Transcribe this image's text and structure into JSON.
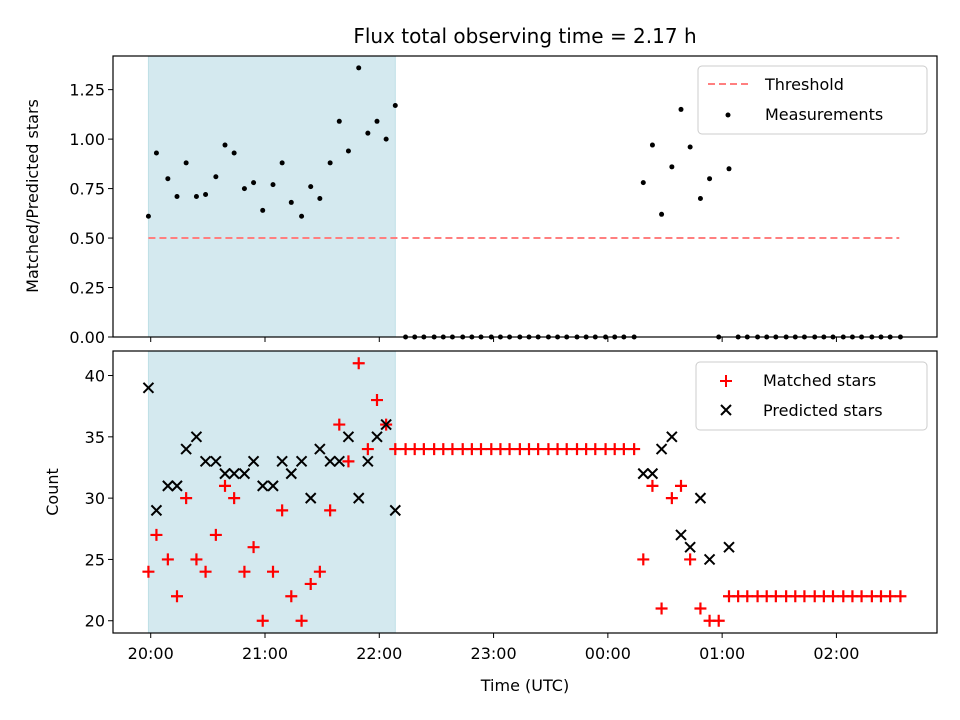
{
  "chart_data": [
    {
      "type": "scatter",
      "title": "Flux total observing time = 2.17 h",
      "ylabel": "Matched/Predicted stars",
      "xlabel": "",
      "x_unit": "hours after 20:00 UTC",
      "xlim": [
        -0.33,
        6.88
      ],
      "ylim": [
        0,
        1.42
      ],
      "yticks": [
        "0.00",
        "0.25",
        "0.50",
        "0.75",
        "1.00",
        "1.25"
      ],
      "ytick_values": [
        0,
        0.25,
        0.5,
        0.75,
        1.0,
        1.25
      ],
      "xtick_values": [
        0,
        1,
        2,
        3,
        4,
        5,
        6
      ],
      "shaded_span": [
        -0.02,
        2.14
      ],
      "shade_color": "#d4e9ef",
      "threshold": {
        "name": "Threshold",
        "value": 0.5,
        "x_range": [
          -0.02,
          6.55
        ],
        "color": "#ff7f7f"
      },
      "legend": [
        "Threshold",
        "Measurements"
      ],
      "legend_position": "top-right",
      "series": [
        {
          "name": "Measurements",
          "color": "#000000",
          "points": [
            [
              -0.02,
              0.61
            ],
            [
              0.05,
              0.93
            ],
            [
              0.15,
              0.8
            ],
            [
              0.23,
              0.71
            ],
            [
              0.31,
              0.88
            ],
            [
              0.4,
              0.71
            ],
            [
              0.48,
              0.72
            ],
            [
              0.57,
              0.81
            ],
            [
              0.65,
              0.97
            ],
            [
              0.73,
              0.93
            ],
            [
              0.82,
              0.75
            ],
            [
              0.9,
              0.78
            ],
            [
              0.98,
              0.64
            ],
            [
              1.07,
              0.77
            ],
            [
              1.15,
              0.88
            ],
            [
              1.23,
              0.68
            ],
            [
              1.32,
              0.61
            ],
            [
              1.4,
              0.76
            ],
            [
              1.48,
              0.7
            ],
            [
              1.57,
              0.88
            ],
            [
              1.65,
              1.09
            ],
            [
              1.73,
              0.94
            ],
            [
              1.82,
              1.36
            ],
            [
              1.9,
              1.03
            ],
            [
              1.98,
              1.09
            ],
            [
              2.06,
              1.0
            ],
            [
              2.14,
              1.17
            ],
            [
              2.23,
              0
            ],
            [
              2.31,
              0
            ],
            [
              2.39,
              0
            ],
            [
              2.48,
              0
            ],
            [
              2.56,
              0
            ],
            [
              2.64,
              0
            ],
            [
              2.73,
              0
            ],
            [
              2.81,
              0
            ],
            [
              2.89,
              0
            ],
            [
              2.98,
              0
            ],
            [
              3.06,
              0
            ],
            [
              3.14,
              0
            ],
            [
              3.23,
              0
            ],
            [
              3.31,
              0
            ],
            [
              3.39,
              0
            ],
            [
              3.48,
              0
            ],
            [
              3.56,
              0
            ],
            [
              3.64,
              0
            ],
            [
              3.73,
              0
            ],
            [
              3.81,
              0
            ],
            [
              3.89,
              0
            ],
            [
              3.98,
              0
            ],
            [
              4.06,
              0
            ],
            [
              4.14,
              0
            ],
            [
              4.23,
              0
            ],
            [
              4.31,
              0.78
            ],
            [
              4.39,
              0.97
            ],
            [
              4.47,
              0.62
            ],
            [
              4.56,
              0.86
            ],
            [
              4.64,
              1.15
            ],
            [
              4.72,
              0.96
            ],
            [
              4.81,
              0.7
            ],
            [
              4.89,
              0.8
            ],
            [
              4.97,
              0
            ],
            [
              5.06,
              0.85
            ],
            [
              5.14,
              0
            ],
            [
              5.22,
              0
            ],
            [
              5.31,
              0
            ],
            [
              5.39,
              0
            ],
            [
              5.47,
              0
            ],
            [
              5.56,
              0
            ],
            [
              5.64,
              0
            ],
            [
              5.72,
              0
            ],
            [
              5.81,
              0
            ],
            [
              5.89,
              0
            ],
            [
              5.97,
              0
            ],
            [
              6.06,
              0
            ],
            [
              6.14,
              0
            ],
            [
              6.22,
              0
            ],
            [
              6.31,
              0
            ],
            [
              6.39,
              0
            ],
            [
              6.47,
              0
            ],
            [
              6.56,
              0
            ]
          ]
        }
      ]
    },
    {
      "type": "scatter",
      "title": "",
      "ylabel": "Count",
      "xlabel": "Time (UTC)",
      "x_unit": "hours after 20:00 UTC",
      "xlim": [
        -0.33,
        6.88
      ],
      "ylim": [
        19,
        42
      ],
      "yticks": [
        "20",
        "25",
        "30",
        "35",
        "40"
      ],
      "ytick_values": [
        20,
        25,
        30,
        35,
        40
      ],
      "xtick_values": [
        0,
        1,
        2,
        3,
        4,
        5,
        6
      ],
      "xticks": [
        "20:00",
        "21:00",
        "22:00",
        "23:00",
        "00:00",
        "01:00",
        "02:00"
      ],
      "shaded_span": [
        -0.02,
        2.14
      ],
      "shade_color": "#d4e9ef",
      "legend": [
        "Matched stars",
        "Predicted stars"
      ],
      "legend_position": "top-right",
      "series": [
        {
          "name": "Matched stars",
          "marker": "+",
          "color": "#ff0000",
          "points": [
            [
              -0.02,
              24
            ],
            [
              0.05,
              27
            ],
            [
              0.15,
              25
            ],
            [
              0.23,
              22
            ],
            [
              0.31,
              30
            ],
            [
              0.4,
              25
            ],
            [
              0.48,
              24
            ],
            [
              0.57,
              27
            ],
            [
              0.65,
              31
            ],
            [
              0.73,
              30
            ],
            [
              0.82,
              24
            ],
            [
              0.9,
              26
            ],
            [
              0.98,
              20
            ],
            [
              1.07,
              24
            ],
            [
              1.15,
              29
            ],
            [
              1.23,
              22
            ],
            [
              1.32,
              20
            ],
            [
              1.4,
              23
            ],
            [
              1.48,
              24
            ],
            [
              1.57,
              29
            ],
            [
              1.65,
              36
            ],
            [
              1.73,
              33
            ],
            [
              1.82,
              41
            ],
            [
              1.9,
              34
            ],
            [
              1.98,
              38
            ],
            [
              2.06,
              36
            ],
            [
              2.14,
              34
            ],
            [
              2.23,
              34
            ],
            [
              2.31,
              34
            ],
            [
              2.39,
              34
            ],
            [
              2.48,
              34
            ],
            [
              2.56,
              34
            ],
            [
              2.64,
              34
            ],
            [
              2.73,
              34
            ],
            [
              2.81,
              34
            ],
            [
              2.89,
              34
            ],
            [
              2.98,
              34
            ],
            [
              3.06,
              34
            ],
            [
              3.14,
              34
            ],
            [
              3.23,
              34
            ],
            [
              3.31,
              34
            ],
            [
              3.39,
              34
            ],
            [
              3.48,
              34
            ],
            [
              3.56,
              34
            ],
            [
              3.64,
              34
            ],
            [
              3.73,
              34
            ],
            [
              3.81,
              34
            ],
            [
              3.89,
              34
            ],
            [
              3.98,
              34
            ],
            [
              4.06,
              34
            ],
            [
              4.14,
              34
            ],
            [
              4.23,
              34
            ],
            [
              4.31,
              25
            ],
            [
              4.39,
              31
            ],
            [
              4.47,
              21
            ],
            [
              4.56,
              30
            ],
            [
              4.64,
              31
            ],
            [
              4.72,
              25
            ],
            [
              4.81,
              21
            ],
            [
              4.89,
              20
            ],
            [
              4.97,
              20
            ],
            [
              5.06,
              22
            ],
            [
              5.14,
              22
            ],
            [
              5.22,
              22
            ],
            [
              5.31,
              22
            ],
            [
              5.39,
              22
            ],
            [
              5.47,
              22
            ],
            [
              5.56,
              22
            ],
            [
              5.64,
              22
            ],
            [
              5.72,
              22
            ],
            [
              5.81,
              22
            ],
            [
              5.89,
              22
            ],
            [
              5.97,
              22
            ],
            [
              6.06,
              22
            ],
            [
              6.14,
              22
            ],
            [
              6.22,
              22
            ],
            [
              6.31,
              22
            ],
            [
              6.39,
              22
            ],
            [
              6.47,
              22
            ],
            [
              6.56,
              22
            ]
          ]
        },
        {
          "name": "Predicted stars",
          "marker": "x",
          "color": "#000000",
          "points": [
            [
              -0.02,
              39
            ],
            [
              0.05,
              29
            ],
            [
              0.15,
              31
            ],
            [
              0.23,
              31
            ],
            [
              0.31,
              34
            ],
            [
              0.4,
              35
            ],
            [
              0.48,
              33
            ],
            [
              0.57,
              33
            ],
            [
              0.65,
              32
            ],
            [
              0.73,
              32
            ],
            [
              0.82,
              32
            ],
            [
              0.9,
              33
            ],
            [
              0.98,
              31
            ],
            [
              1.07,
              31
            ],
            [
              1.15,
              33
            ],
            [
              1.23,
              32
            ],
            [
              1.32,
              33
            ],
            [
              1.4,
              30
            ],
            [
              1.48,
              34
            ],
            [
              1.57,
              33
            ],
            [
              1.65,
              33
            ],
            [
              1.73,
              35
            ],
            [
              1.82,
              30
            ],
            [
              1.9,
              33
            ],
            [
              1.98,
              35
            ],
            [
              2.06,
              36
            ],
            [
              2.14,
              29
            ],
            [
              4.31,
              32
            ],
            [
              4.39,
              32
            ],
            [
              4.47,
              34
            ],
            [
              4.56,
              35
            ],
            [
              4.64,
              27
            ],
            [
              4.72,
              26
            ],
            [
              4.81,
              30
            ],
            [
              4.89,
              25
            ],
            [
              5.06,
              26
            ]
          ]
        }
      ]
    }
  ]
}
